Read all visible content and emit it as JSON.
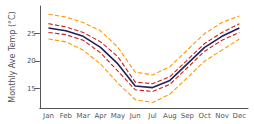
{
  "chart_data": {
    "type": "line",
    "ylabel": "Monthly Ave Temp (°C)",
    "categories": [
      "Jan",
      "Feb",
      "Mar",
      "Apr",
      "May",
      "Jun",
      "Jul",
      "Aug",
      "Sep",
      "Oct",
      "Nov",
      "Dec"
    ],
    "series": [
      {
        "color": "#ff9900",
        "line_style": "dashed",
        "values": [
          24.0,
          23.5,
          22.0,
          19.5,
          16.0,
          13.0,
          12.5,
          14.0,
          17.0,
          20.0,
          22.0,
          24.0
        ]
      },
      {
        "color": "#ff9900",
        "line_style": "dashed",
        "values": [
          28.5,
          28.0,
          27.0,
          25.5,
          22.5,
          18.0,
          17.5,
          19.0,
          22.0,
          25.0,
          27.0,
          28.2
        ]
      },
      {
        "color": "#cc2222",
        "line_style": "dashed",
        "values": [
          25.2,
          24.8,
          23.8,
          21.5,
          18.2,
          14.8,
          14.5,
          15.8,
          18.8,
          21.8,
          23.8,
          25.2
        ]
      },
      {
        "color": "#cc2222",
        "line_style": "dashed",
        "values": [
          26.8,
          26.2,
          25.2,
          23.5,
          20.8,
          16.2,
          15.9,
          17.2,
          20.2,
          23.2,
          25.2,
          26.8
        ]
      },
      {
        "color": "#22225a",
        "line_style": "solid",
        "values": [
          26.0,
          25.5,
          24.5,
          22.5,
          19.5,
          15.5,
          15.2,
          16.5,
          19.5,
          22.5,
          24.5,
          26.0
        ]
      }
    ],
    "ylim": [
      11.5,
      30
    ],
    "yticks": [
      15,
      20,
      25
    ],
    "grid": false
  }
}
